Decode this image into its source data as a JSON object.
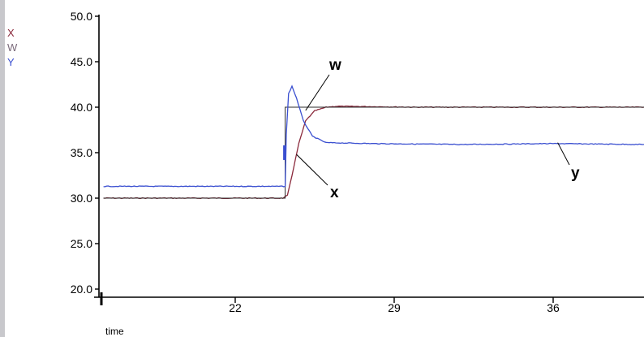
{
  "chart_data": {
    "type": "line",
    "xlabel": "time",
    "ylabel": "",
    "title": "",
    "xlim": [
      16.0,
      40.0
    ],
    "ylim": [
      20.0,
      50.0
    ],
    "x_ticks": [
      22,
      29,
      36
    ],
    "x_tick_labels": [
      "22",
      "29",
      "36"
    ],
    "y_ticks": [
      20.0,
      25.0,
      30.0,
      35.0,
      40.0,
      45.0,
      50.0
    ],
    "y_tick_labels": [
      "20.0",
      "25.0",
      "30.0",
      "35.0",
      "40.0",
      "45.0",
      "50.0"
    ],
    "grid": false,
    "legend_position": "top-left",
    "legend": [
      {
        "label": "X",
        "color": "#8b2a3c"
      },
      {
        "label": "W",
        "color": "#7a6a7a"
      },
      {
        "label": "Y",
        "color": "#3a4fd0"
      }
    ],
    "series": [
      {
        "name": "x",
        "color": "#8b2a3c",
        "points": [
          [
            16.2,
            30.0
          ],
          [
            24.1,
            30.0
          ],
          [
            24.3,
            30.3
          ],
          [
            24.5,
            32.5
          ],
          [
            24.8,
            36.0
          ],
          [
            25.1,
            38.5
          ],
          [
            25.5,
            39.6
          ],
          [
            26.0,
            40.0
          ],
          [
            26.5,
            40.1
          ],
          [
            30.0,
            40.0
          ],
          [
            40.0,
            40.0
          ]
        ]
      },
      {
        "name": "w",
        "color": "#2b2b2b",
        "points": [
          [
            16.2,
            30.0
          ],
          [
            24.2,
            30.0
          ],
          [
            24.2,
            40.0
          ],
          [
            40.0,
            40.0
          ]
        ]
      },
      {
        "name": "y",
        "color": "#3a4fd0",
        "points": [
          [
            16.2,
            31.3
          ],
          [
            24.2,
            31.3
          ],
          [
            24.25,
            37.0
          ],
          [
            24.35,
            41.5
          ],
          [
            24.5,
            42.3
          ],
          [
            24.7,
            41.0
          ],
          [
            25.0,
            38.5
          ],
          [
            25.4,
            36.8
          ],
          [
            26.0,
            36.1
          ],
          [
            28.0,
            36.0
          ],
          [
            32.0,
            35.9
          ],
          [
            36.0,
            36.0
          ],
          [
            40.0,
            35.9
          ]
        ]
      }
    ],
    "annotations": [
      {
        "text": "w",
        "series": "w"
      },
      {
        "text": "x",
        "series": "x"
      },
      {
        "text": "y",
        "series": "y"
      }
    ]
  }
}
